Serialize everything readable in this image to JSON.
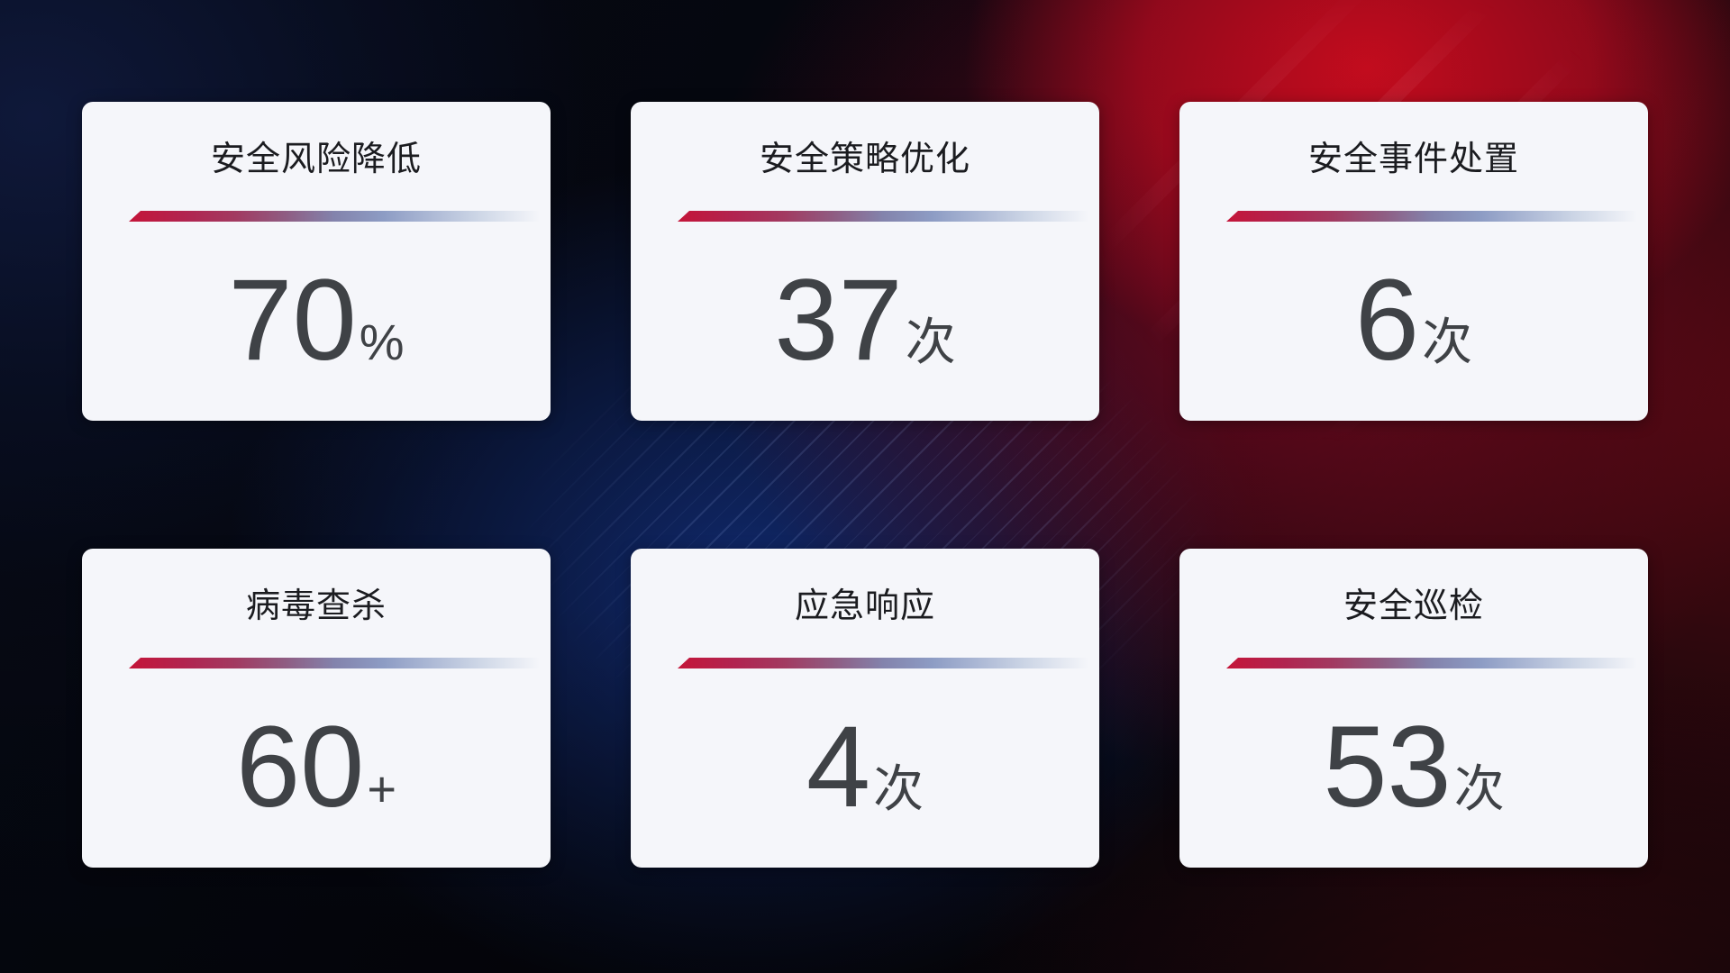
{
  "page": {
    "type": "security-kpi-dashboard"
  },
  "cards": [
    {
      "title": "安全风险降低",
      "value": "70",
      "unit": "%"
    },
    {
      "title": "安全策略优化",
      "value": "37",
      "unit": "次"
    },
    {
      "title": "安全事件处置",
      "value": "6",
      "unit": "次"
    },
    {
      "title": "病毒查杀",
      "value": "60",
      "unit": "+"
    },
    {
      "title": "应急响应",
      "value": "4",
      "unit": "次"
    },
    {
      "title": "安全巡检",
      "value": "53",
      "unit": "次"
    }
  ],
  "colors": {
    "card_background": "#f5f6fa",
    "title_text": "#1b1c20",
    "value_text": "#3f4246",
    "divider_gradient": [
      "#c41539",
      "#b12450",
      "#8f5c82",
      "#8383ac",
      "#8d9cc4",
      "#aebad6",
      "#cdd6e6"
    ],
    "background_base": "#04050a",
    "background_navy": "#101a3e",
    "background_blue_glow": "#122e7a",
    "background_red_bright": "#c00d1e",
    "background_red_dark": "#460a0e"
  }
}
